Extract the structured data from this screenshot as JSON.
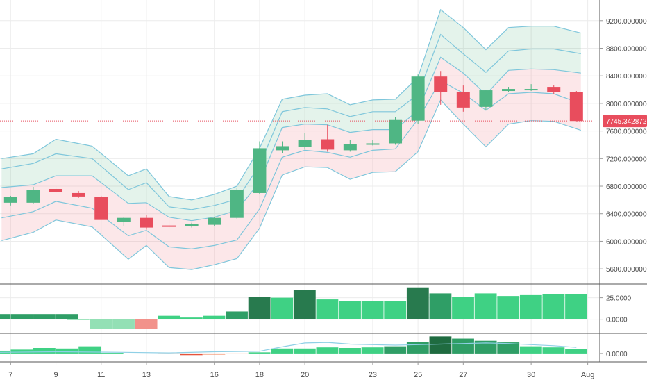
{
  "chart_data": [
    {
      "type": "candlestick",
      "pane": "price",
      "ylim": [
        5400,
        9500
      ],
      "y_ticks": [
        "5600.00000000",
        "6000.00000000",
        "6400.00000000",
        "6800.00000000",
        "7200.00000000",
        "7600.00000000",
        "8000.00000000",
        "8400.00000000",
        "8800.00000000",
        "9200.00000000"
      ],
      "y_tick_values": [
        5600,
        6000,
        6400,
        6800,
        7200,
        7600,
        8000,
        8400,
        8800,
        9200
      ],
      "last_price": 7745.34287275,
      "last_price_label": "7745.34287275",
      "colors": {
        "up": "#4fb684",
        "down": "#e84d5d",
        "band_upper": "#4cae76",
        "band_lower": "#f2878f",
        "band_line": "#7ec6db",
        "grid": "#ececec",
        "price_line": "#e84d5d"
      },
      "candles": [
        {
          "d": 5,
          "o": 6560,
          "h": 6660,
          "l": 6520,
          "c": 6640
        },
        {
          "d": 6,
          "o": 6560,
          "h": 6790,
          "l": 6540,
          "c": 6740
        },
        {
          "d": 7,
          "o": 6760,
          "h": 6800,
          "l": 6700,
          "c": 6710
        },
        {
          "d": 8,
          "o": 6700,
          "h": 6730,
          "l": 6630,
          "c": 6650
        },
        {
          "d": 9,
          "o": 6640,
          "h": 6660,
          "l": 6320,
          "c": 6310
        },
        {
          "d": 10,
          "o": 6280,
          "h": 6350,
          "l": 6220,
          "c": 6340
        },
        {
          "d": 11,
          "o": 6340,
          "h": 6380,
          "l": 6170,
          "c": 6200
        },
        {
          "d": 12,
          "o": 6230,
          "h": 6310,
          "l": 6190,
          "c": 6220
        },
        {
          "d": 13,
          "o": 6220,
          "h": 6270,
          "l": 6200,
          "c": 6250
        },
        {
          "d": 14,
          "o": 6240,
          "h": 6350,
          "l": 6220,
          "c": 6340
        },
        {
          "d": 15,
          "o": 6340,
          "h": 6780,
          "l": 6320,
          "c": 6740
        },
        {
          "d": 16,
          "o": 6700,
          "h": 7450,
          "l": 6680,
          "c": 7350
        },
        {
          "d": 17,
          "o": 7320,
          "h": 7450,
          "l": 7280,
          "c": 7380
        },
        {
          "d": 18,
          "o": 7370,
          "h": 7570,
          "l": 7330,
          "c": 7470
        },
        {
          "d": 19,
          "o": 7480,
          "h": 7690,
          "l": 7300,
          "c": 7330
        },
        {
          "d": 20,
          "o": 7320,
          "h": 7470,
          "l": 7300,
          "c": 7410
        },
        {
          "d": 21,
          "o": 7420,
          "h": 7470,
          "l": 7390,
          "c": 7420
        },
        {
          "d": 22,
          "o": 7420,
          "h": 7800,
          "l": 7400,
          "c": 7760
        },
        {
          "d": 23,
          "o": 7750,
          "h": 8420,
          "l": 7700,
          "c": 8390
        },
        {
          "d": 24,
          "o": 8390,
          "h": 8470,
          "l": 7980,
          "c": 8170
        },
        {
          "d": 25,
          "o": 8170,
          "h": 8260,
          "l": 7880,
          "c": 7940
        },
        {
          "d": 26,
          "o": 7950,
          "h": 8190,
          "l": 7900,
          "c": 8190
        },
        {
          "d": 27,
          "o": 8180,
          "h": 8240,
          "l": 8160,
          "c": 8210
        },
        {
          "d": 28,
          "o": 8200,
          "h": 8280,
          "l": 8180,
          "c": 8210
        },
        {
          "d": 29,
          "o": 8240,
          "h": 8270,
          "l": 8130,
          "c": 8170
        },
        {
          "d": 30,
          "o": 8170,
          "h": 8180,
          "l": 7740,
          "c": 7745
        }
      ],
      "band_x": [
        4.6,
        6,
        7,
        8.6,
        10.2,
        11,
        12,
        13,
        14,
        15,
        16,
        17,
        18,
        19,
        20,
        21,
        22,
        23,
        24,
        25,
        26,
        27,
        28,
        29,
        30.2
      ],
      "band_upper_outer": [
        7200,
        7270,
        7480,
        7380,
        6950,
        7050,
        6650,
        6600,
        6680,
        6800,
        7350,
        8060,
        8120,
        8140,
        7980,
        8050,
        8060,
        8380,
        9360,
        9100,
        8780,
        9100,
        9120,
        9120,
        9020
      ],
      "band_upper_inner": [
        7050,
        7130,
        7270,
        7200,
        6750,
        6850,
        6500,
        6460,
        6520,
        6610,
        7100,
        7880,
        7940,
        7920,
        7810,
        7880,
        7880,
        8130,
        9000,
        8720,
        8450,
        8760,
        8790,
        8790,
        8720
      ],
      "band_middle": [
        6780,
        6820,
        6950,
        6950,
        6550,
        6560,
        6350,
        6300,
        6350,
        6450,
        6860,
        7650,
        7700,
        7690,
        7580,
        7620,
        7620,
        7900,
        8670,
        8440,
        8130,
        8480,
        8500,
        8490,
        8440
      ],
      "band_lower_inner": [
        6340,
        6430,
        6580,
        6480,
        6080,
        6160,
        5920,
        5890,
        5940,
        6020,
        6470,
        7220,
        7320,
        7290,
        7220,
        7320,
        7340,
        7770,
        8330,
        8150,
        7900,
        8140,
        8160,
        8140,
        8000
      ],
      "band_lower_outer": [
        6010,
        6130,
        6310,
        6210,
        5740,
        5940,
        5620,
        5590,
        5660,
        5750,
        6190,
        6960,
        7080,
        7070,
        6900,
        7000,
        7010,
        7300,
        8050,
        7700,
        7370,
        7700,
        7750,
        7740,
        7610
      ]
    },
    {
      "type": "bar",
      "pane": "indicator-1",
      "ylim": [
        -14,
        40
      ],
      "y_ticks": [
        "25.0000",
        "0.0000"
      ],
      "y_tick_values": [
        25,
        0
      ],
      "colors": {
        "pos_light": "#3fd184",
        "pos_mid": "#2f9e66",
        "pos_dark": "#287a4e",
        "neg_light": "#93e0b5",
        "neg_red": "#f2928b"
      },
      "bars": [
        {
          "d": 4.5,
          "v": 6,
          "c": "pos_mid"
        },
        {
          "d": 5.5,
          "v": 6,
          "c": "pos_mid"
        },
        {
          "d": 6.5,
          "v": 6,
          "c": "pos_mid"
        },
        {
          "d": 7.5,
          "v": 6,
          "c": "pos_mid"
        },
        {
          "d": 8,
          "v": -1,
          "c": "neg_light"
        },
        {
          "d": 9,
          "v": -11,
          "c": "neg_light"
        },
        {
          "d": 10,
          "v": -11,
          "c": "neg_light"
        },
        {
          "d": 11,
          "v": -11,
          "c": "neg_red"
        },
        {
          "d": 12,
          "v": 4,
          "c": "pos_light"
        },
        {
          "d": 13,
          "v": 2,
          "c": "pos_light"
        },
        {
          "d": 14,
          "v": 4,
          "c": "pos_light"
        },
        {
          "d": 15,
          "v": 9,
          "c": "pos_mid"
        },
        {
          "d": 16,
          "v": 26,
          "c": "pos_dark"
        },
        {
          "d": 17,
          "v": 25,
          "c": "pos_light"
        },
        {
          "d": 18,
          "v": 34,
          "c": "pos_dark"
        },
        {
          "d": 19,
          "v": 23,
          "c": "pos_light"
        },
        {
          "d": 20,
          "v": 21,
          "c": "pos_light"
        },
        {
          "d": 21,
          "v": 21,
          "c": "pos_light"
        },
        {
          "d": 22,
          "v": 21,
          "c": "pos_light"
        },
        {
          "d": 23,
          "v": 37,
          "c": "pos_dark"
        },
        {
          "d": 24,
          "v": 30,
          "c": "pos_mid"
        },
        {
          "d": 25,
          "v": 26,
          "c": "pos_light"
        },
        {
          "d": 26,
          "v": 30,
          "c": "pos_light"
        },
        {
          "d": 27,
          "v": 27,
          "c": "pos_light"
        },
        {
          "d": 28,
          "v": 28,
          "c": "pos_light"
        },
        {
          "d": 29,
          "v": 29,
          "c": "pos_light"
        },
        {
          "d": 30,
          "v": 29,
          "c": "pos_light"
        }
      ]
    },
    {
      "type": "bar",
      "pane": "indicator-2",
      "ylim": [
        -14,
        34
      ],
      "y_ticks": [
        "0.0000"
      ],
      "y_tick_values": [
        0
      ],
      "colors": {
        "pos_light": "#3fd184",
        "pos_mid": "#2f9e66",
        "pos_dark": "#1f6b40",
        "neg_orange": "#f07b4c",
        "neg_red": "#e6543c",
        "line": "#8fd0e6"
      },
      "bars": [
        {
          "d": 4.5,
          "v": 5,
          "c": "pos_light"
        },
        {
          "d": 5.5,
          "v": 7,
          "c": "pos_light"
        },
        {
          "d": 6.5,
          "v": 10,
          "c": "pos_light"
        },
        {
          "d": 7.5,
          "v": 9,
          "c": "pos_light"
        },
        {
          "d": 8.5,
          "v": 13,
          "c": "pos_light"
        },
        {
          "d": 9.5,
          "v": 1,
          "c": "pos_light"
        },
        {
          "d": 12,
          "v": -1,
          "c": "neg_orange"
        },
        {
          "d": 13,
          "v": -3,
          "c": "neg_red"
        },
        {
          "d": 14,
          "v": -2,
          "c": "neg_orange"
        },
        {
          "d": 15,
          "v": -1,
          "c": "neg_orange"
        },
        {
          "d": 16,
          "v": 2,
          "c": "pos_light"
        },
        {
          "d": 17,
          "v": 9,
          "c": "pos_light"
        },
        {
          "d": 18,
          "v": 9,
          "c": "pos_light"
        },
        {
          "d": 19,
          "v": 11,
          "c": "pos_light"
        },
        {
          "d": 20,
          "v": 10,
          "c": "pos_light"
        },
        {
          "d": 21,
          "v": 11,
          "c": "pos_light"
        },
        {
          "d": 22,
          "v": 13,
          "c": "pos_mid"
        },
        {
          "d": 23,
          "v": 21,
          "c": "pos_mid"
        },
        {
          "d": 24,
          "v": 31,
          "c": "pos_dark"
        },
        {
          "d": 25,
          "v": 27,
          "c": "pos_mid"
        },
        {
          "d": 26,
          "v": 23,
          "c": "pos_mid"
        },
        {
          "d": 27,
          "v": 20,
          "c": "pos_mid"
        },
        {
          "d": 28,
          "v": 13,
          "c": "pos_light"
        },
        {
          "d": 29,
          "v": 11,
          "c": "pos_light"
        },
        {
          "d": 30,
          "v": 8,
          "c": "pos_light"
        }
      ],
      "line_x": [
        4.5,
        7,
        10,
        12,
        14,
        16,
        17,
        18,
        19,
        20,
        21,
        22,
        23,
        24,
        25,
        26,
        27,
        28,
        29,
        30
      ],
      "line_v": [
        2,
        3,
        2,
        1,
        3,
        4,
        12,
        19,
        20,
        17,
        16,
        15,
        16,
        17,
        18,
        19,
        18,
        16,
        14,
        11
      ]
    }
  ],
  "x_axis": {
    "labels": [
      {
        "d": 5,
        "text": "7"
      },
      {
        "d": 7,
        "text": "9"
      },
      {
        "d": 9,
        "text": "11"
      },
      {
        "d": 11,
        "text": "13"
      },
      {
        "d": 14,
        "text": "16"
      },
      {
        "d": 16,
        "text": "18"
      },
      {
        "d": 18,
        "text": "20"
      },
      {
        "d": 21,
        "text": "23"
      },
      {
        "d": 23,
        "text": "25"
      },
      {
        "d": 25,
        "text": "27"
      },
      {
        "d": 28,
        "text": "30"
      },
      {
        "d": 30.5,
        "text": "Aug"
      }
    ]
  }
}
